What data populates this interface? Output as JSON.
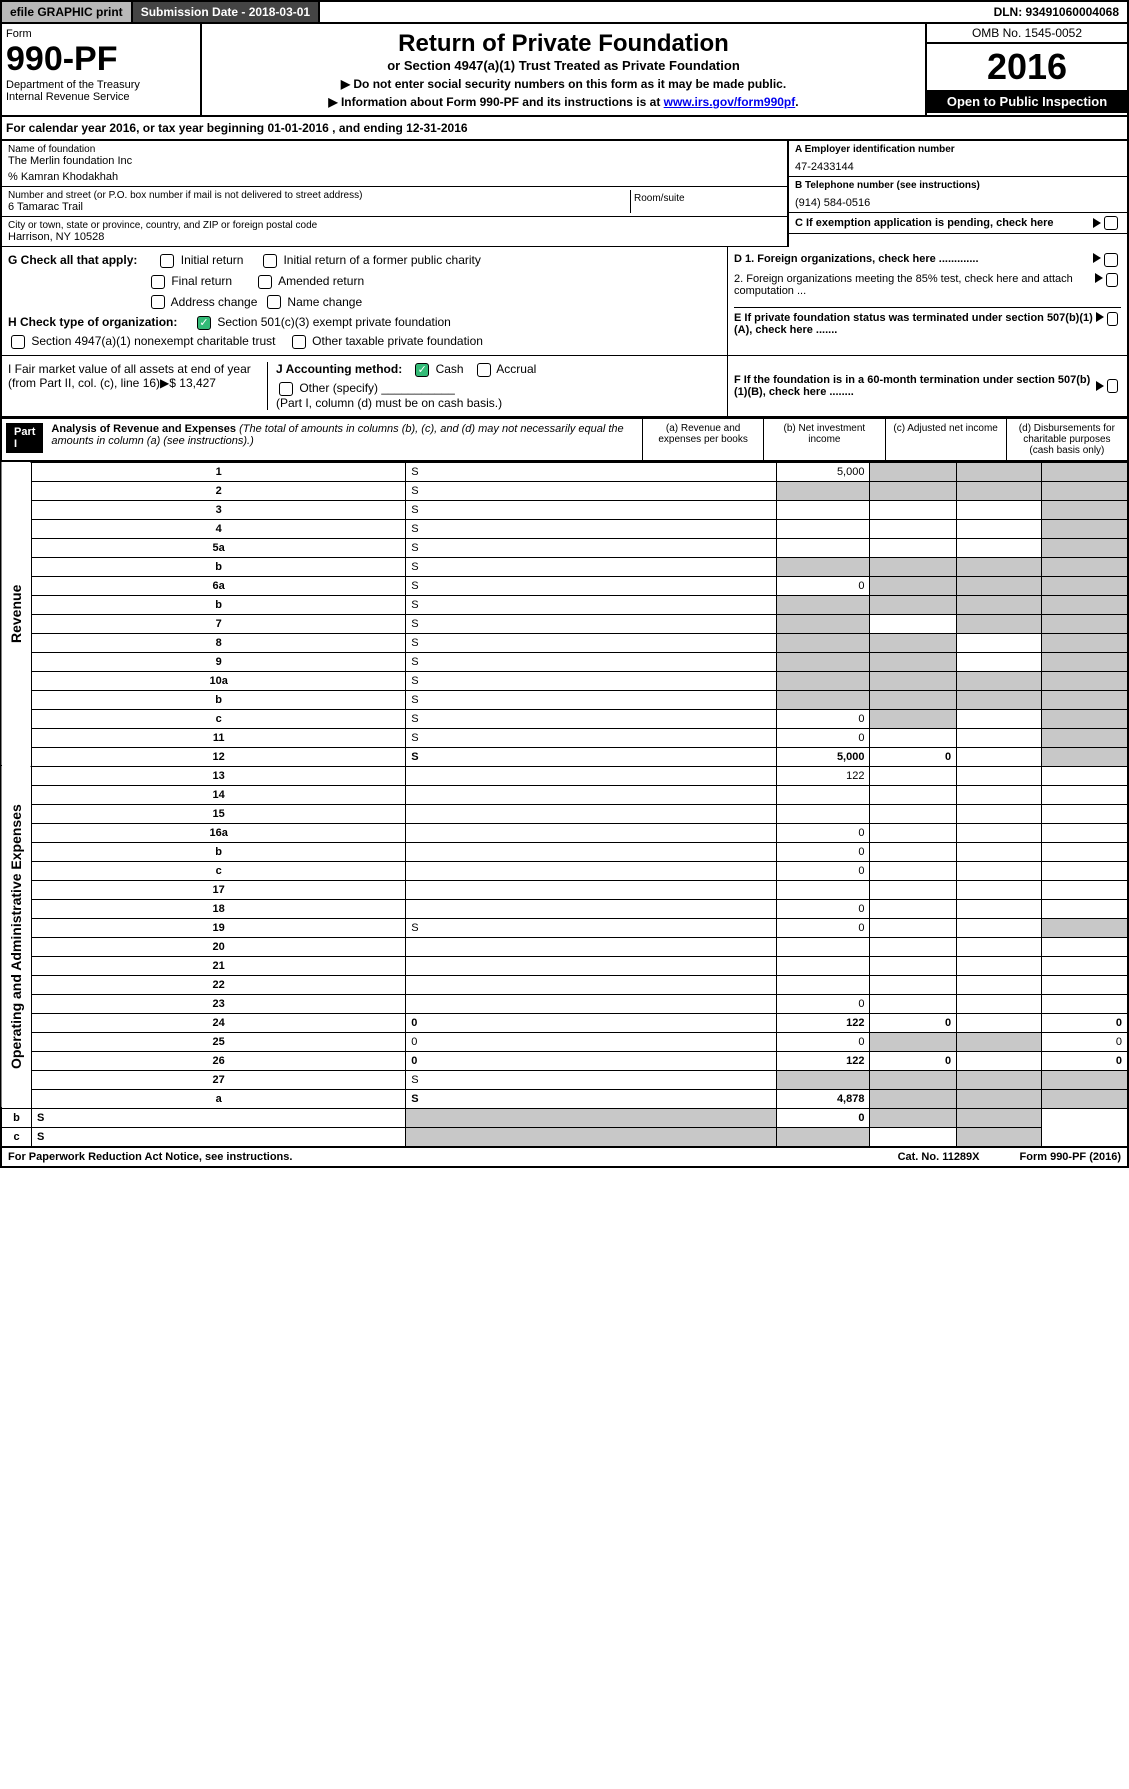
{
  "topbar": {
    "efile": "efile GRAPHIC print",
    "sub_label": "Submission Date - 2018-03-01",
    "dln": "DLN: 93491060004068"
  },
  "header": {
    "form_label": "Form",
    "form_number": "990-PF",
    "dept1": "Department of the Treasury",
    "dept2": "Internal Revenue Service",
    "title": "Return of Private Foundation",
    "subtitle": "or Section 4947(a)(1) Trust Treated as Private Foundation",
    "note1": "▶ Do not enter social security numbers on this form as it may be made public.",
    "note2_prefix": "▶ Information about Form 990-PF and its instructions is at ",
    "note2_link": "www.irs.gov/form990pf",
    "omb": "OMB No. 1545-0052",
    "year": "2016",
    "open": "Open to Public Inspection"
  },
  "calyear": "For calendar year 2016, or tax year beginning 01-01-2016              , and ending 12-31-2016",
  "entity": {
    "name_label": "Name of foundation",
    "name": "The Merlin foundation Inc",
    "care_of": "% Kamran Khodakhah",
    "addr_label": "Number and street (or P.O. box number if mail is not delivered to street address)",
    "addr": "6 Tamarac Trail",
    "room_label": "Room/suite",
    "city_label": "City or town, state or province, country, and ZIP or foreign postal code",
    "city": "Harrison, NY  10528",
    "ein_label": "A Employer identification number",
    "ein": "47-2433144",
    "phone_label": "B Telephone number (see instructions)",
    "phone": "(914) 584-0516",
    "c_label": "C If exemption application is pending, check here"
  },
  "checks": {
    "g_label": "G Check all that apply:",
    "g1": "Initial return",
    "g2": "Initial return of a former public charity",
    "g3": "Final return",
    "g4": "Amended return",
    "g5": "Address change",
    "g6": "Name change",
    "h_label": "H Check type of organization:",
    "h1": "Section 501(c)(3) exempt private foundation",
    "h2": "Section 4947(a)(1) nonexempt charitable trust",
    "h3": "Other taxable private foundation",
    "i_label": "I Fair market value of all assets at end of year (from Part II, col. (c), line 16)▶$  13,427",
    "j_label": "J Accounting method:",
    "j1": "Cash",
    "j2": "Accrual",
    "j3": "Other (specify)",
    "j_note": "(Part I, column (d) must be on cash basis.)",
    "d1": "D 1. Foreign organizations, check here .............",
    "d2": "2. Foreign organizations meeting the 85% test, check here and attach computation ...",
    "e": "E  If private foundation status was terminated under section 507(b)(1)(A), check here .......",
    "f": "F  If the foundation is in a 60-month termination under section 507(b)(1)(B), check here ........"
  },
  "part1": {
    "label": "Part I",
    "title": "Analysis of Revenue and Expenses",
    "note": " (The total of amounts in columns (b), (c), and (d) may not necessarily equal the amounts in column (a) (see instructions).)",
    "col_a": "(a)    Revenue and expenses per books",
    "col_b": "(b)   Net investment income",
    "col_c": "(c)   Adjusted net income",
    "col_d": "(d)   Disbursements for charitable purposes (cash basis only)"
  },
  "sides": {
    "rev": "Revenue",
    "exp": "Operating and Administrative Expenses"
  },
  "rows": [
    {
      "n": "1",
      "d": "S",
      "a": "5,000",
      "b": "S",
      "c": "S"
    },
    {
      "n": "2",
      "d": "S",
      "a": "S",
      "b": "S",
      "c": "S"
    },
    {
      "n": "3",
      "d": "S",
      "a": "",
      "b": "",
      "c": ""
    },
    {
      "n": "4",
      "d": "S",
      "a": "",
      "b": "",
      "c": ""
    },
    {
      "n": "5a",
      "d": "S",
      "a": "",
      "b": "",
      "c": ""
    },
    {
      "n": "b",
      "d": "S",
      "a": "S",
      "b": "S",
      "c": "S"
    },
    {
      "n": "6a",
      "d": "S",
      "a": "0",
      "b": "S",
      "c": "S"
    },
    {
      "n": "b",
      "d": "S",
      "a": "S",
      "b": "S",
      "c": "S"
    },
    {
      "n": "7",
      "d": "S",
      "a": "S",
      "b": "",
      "c": "S"
    },
    {
      "n": "8",
      "d": "S",
      "a": "S",
      "b": "S",
      "c": ""
    },
    {
      "n": "9",
      "d": "S",
      "a": "S",
      "b": "S",
      "c": ""
    },
    {
      "n": "10a",
      "d": "S",
      "a": "S",
      "b": "S",
      "c": "S"
    },
    {
      "n": "b",
      "d": "S",
      "a": "S",
      "b": "S",
      "c": "S"
    },
    {
      "n": "c",
      "d": "S",
      "a": "0",
      "b": "S",
      "c": ""
    },
    {
      "n": "11",
      "d": "S",
      "a": "0",
      "b": "",
      "c": ""
    },
    {
      "n": "12",
      "d": "S",
      "a": "5,000",
      "b": "0",
      "c": "",
      "bold": true
    },
    {
      "n": "13",
      "d": "",
      "a": "122",
      "b": "",
      "c": ""
    },
    {
      "n": "14",
      "d": "",
      "a": "",
      "b": "",
      "c": ""
    },
    {
      "n": "15",
      "d": "",
      "a": "",
      "b": "",
      "c": ""
    },
    {
      "n": "16a",
      "d": "",
      "a": "0",
      "b": "",
      "c": ""
    },
    {
      "n": "b",
      "d": "",
      "a": "0",
      "b": "",
      "c": ""
    },
    {
      "n": "c",
      "d": "",
      "a": "0",
      "b": "",
      "c": ""
    },
    {
      "n": "17",
      "d": "",
      "a": "",
      "b": "",
      "c": ""
    },
    {
      "n": "18",
      "d": "",
      "a": "0",
      "b": "",
      "c": ""
    },
    {
      "n": "19",
      "d": "S",
      "a": "0",
      "b": "",
      "c": ""
    },
    {
      "n": "20",
      "d": "",
      "a": "",
      "b": "",
      "c": ""
    },
    {
      "n": "21",
      "d": "",
      "a": "",
      "b": "",
      "c": ""
    },
    {
      "n": "22",
      "d": "",
      "a": "",
      "b": "",
      "c": ""
    },
    {
      "n": "23",
      "d": "",
      "a": "0",
      "b": "",
      "c": ""
    },
    {
      "n": "24",
      "d": "0",
      "a": "122",
      "b": "0",
      "c": "",
      "bold": true
    },
    {
      "n": "25",
      "d": "0",
      "a": "0",
      "b": "S",
      "c": "S"
    },
    {
      "n": "26",
      "d": "0",
      "a": "122",
      "b": "0",
      "c": "",
      "bold": true
    },
    {
      "n": "27",
      "d": "S",
      "a": "S",
      "b": "S",
      "c": "S"
    },
    {
      "n": "a",
      "d": "S",
      "a": "4,878",
      "b": "S",
      "c": "S",
      "bold": true
    },
    {
      "n": "b",
      "d": "S",
      "a": "S",
      "b": "0",
      "c": "S",
      "bold": true
    },
    {
      "n": "c",
      "d": "S",
      "a": "S",
      "b": "S",
      "c": "",
      "bold": true
    }
  ],
  "footer": {
    "left": "For Paperwork Reduction Act Notice, see instructions.",
    "mid": "Cat. No. 11289X",
    "right": "Form 990-PF (2016)"
  }
}
